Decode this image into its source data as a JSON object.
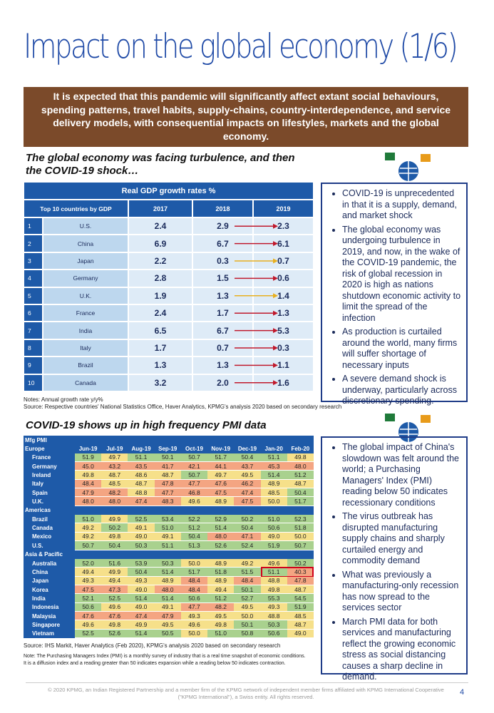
{
  "title": "Impact on the global economy (1/6)",
  "banner": "It is expected that this pandemic will significantly affect extant social behaviours, spending patterns, travel habits, supply-chains, country-interdependence, and service delivery models, with consequential impacts on lifestyles, markets and the global economy.",
  "gdp_section": {
    "heading": "The global economy was facing turbulence, and then the COVID-19 shock…",
    "table": {
      "title": "Real GDP growth rates %",
      "header": [
        "Top 10 countries  by GDP",
        "2017",
        "2018",
        "2019"
      ],
      "rows": [
        [
          "1",
          "U.S.",
          "2.4",
          "2.9",
          "2.3"
        ],
        [
          "2",
          "China",
          "6.9",
          "6.7",
          "6.1"
        ],
        [
          "3",
          "Japan",
          "2.2",
          "0.3",
          "0.7"
        ],
        [
          "4",
          "Germany",
          "2.8",
          "1.5",
          "0.6"
        ],
        [
          "5",
          "U.K.",
          "1.9",
          "1.3",
          "1.4"
        ],
        [
          "6",
          "France",
          "2.4",
          "1.7",
          "1.3"
        ],
        [
          "7",
          "India",
          "6.5",
          "6.7",
          "5.3"
        ],
        [
          "8",
          "Italy",
          "1.7",
          "0.7",
          "0.3"
        ],
        [
          "9",
          "Brazil",
          "1.3",
          "1.3",
          "1.1"
        ],
        [
          "10",
          "Canada",
          "3.2",
          "2.0",
          "1.6"
        ]
      ]
    },
    "notes": [
      "Notes: Annual growth rate y/y%",
      "Source: Respective countries' National Statistics Office, Haver Analytics, KPMG's analysis 2020 based on secondary research"
    ]
  },
  "bullets1": [
    "COVID-19 is unprecedented in that it is a supply, demand, and market shock",
    "The global economy was undergoing turbulence in 2019, and now, in the wake of the COVID-19 pandemic, the risk of global recession in 2020 is high as nations shutdown economic activity to limit the spread of the infection",
    "As production is curtailed around the world, many firms will suffer shortage of necessary inputs",
    "A severe demand shock is underway, particularly across discretionary spending."
  ],
  "pmi_section": {
    "heading": "COVID-19 shows up in high frequency PMI data",
    "table": {
      "label": "Mfg PMI",
      "months": [
        "Jun-19",
        "Jul-19",
        "Aug-19",
        "Sep-19",
        "Oct-19",
        "Nov-19",
        "Dec-19",
        "Jan-20",
        "Feb-20"
      ],
      "groups": [
        {
          "name": "Europe",
          "rows": [
            {
              "country": "France",
              "values": [
                "51.9",
                "49.7",
                "51.1",
                "50.1",
                "50.7",
                "51.7",
                "50.4",
                "51.1",
                "49.8"
              ]
            },
            {
              "country": "Germany",
              "values": [
                "45.0",
                "43.2",
                "43.5",
                "41.7",
                "42.1",
                "44.1",
                "43.7",
                "45.3",
                "48.0"
              ]
            },
            {
              "country": "Ireland",
              "values": [
                "49.8",
                "48.7",
                "48.6",
                "48.7",
                "50.7",
                "49.7",
                "49.5",
                "51.4",
                "51.2"
              ]
            },
            {
              "country": "Italy",
              "values": [
                "48.4",
                "48.5",
                "48.7",
                "47.8",
                "47.7",
                "47.6",
                "46.2",
                "48.9",
                "48.7"
              ]
            },
            {
              "country": "Spain",
              "values": [
                "47.9",
                "48.2",
                "48.8",
                "47.7",
                "46.8",
                "47.5",
                "47.4",
                "48.5",
                "50.4"
              ]
            },
            {
              "country": "U.K.",
              "values": [
                "48.0",
                "48.0",
                "47.4",
                "48.3",
                "49.6",
                "48.9",
                "47.5",
                "50.0",
                "51.7"
              ]
            }
          ]
        },
        {
          "name": "Americas",
          "rows": [
            {
              "country": "Brazil",
              "values": [
                "51.0",
                "49.9",
                "52.5",
                "53.4",
                "52.2",
                "52.9",
                "50.2",
                "51.0",
                "52.3"
              ]
            },
            {
              "country": "Canada",
              "values": [
                "49.2",
                "50.2",
                "49.1",
                "51.0",
                "51.2",
                "51.4",
                "50.4",
                "50.6",
                "51.8"
              ]
            },
            {
              "country": "Mexico",
              "values": [
                "49.2",
                "49.8",
                "49.0",
                "49.1",
                "50.4",
                "48.0",
                "47.1",
                "49.0",
                "50.0"
              ]
            },
            {
              "country": "U.S.",
              "values": [
                "50.7",
                "50.4",
                "50.3",
                "51.1",
                "51.3",
                "52.6",
                "52.4",
                "51.9",
                "50.7"
              ]
            }
          ]
        },
        {
          "name": "Asia & Pacific",
          "rows": [
            {
              "country": "Australia",
              "values": [
                "52.0",
                "51.6",
                "53.9",
                "50.3",
                "50.0",
                "48.9",
                "49.2",
                "49.6",
                "50.2"
              ]
            },
            {
              "country": "China",
              "values": [
                "49.4",
                "49.9",
                "50.4",
                "51.4",
                "51.7",
                "51.8",
                "51.5",
                "51.1",
                "40.3"
              ]
            },
            {
              "country": "Japan",
              "values": [
                "49.3",
                "49.4",
                "49.3",
                "48.9",
                "48.4",
                "48.9",
                "48.4",
                "48.8",
                "47.8"
              ]
            },
            {
              "country": "Korea",
              "values": [
                "47.5",
                "47.3",
                "49.0",
                "48.0",
                "48.4",
                "49.4",
                "50.1",
                "49.8",
                "48.7"
              ]
            },
            {
              "country": "India",
              "values": [
                "52.1",
                "52.5",
                "51.4",
                "51.4",
                "50.6",
                "51.2",
                "52.7",
                "55.3",
                "54.5"
              ]
            },
            {
              "country": "Indonesia",
              "values": [
                "50.6",
                "49.6",
                "49.0",
                "49.1",
                "47.7",
                "48.2",
                "49.5",
                "49.3",
                "51.9"
              ]
            },
            {
              "country": "Malaysia",
              "values": [
                "47.6",
                "47.6",
                "47.4",
                "47.9",
                "49.3",
                "49.5",
                "50.0",
                "48.8",
                "48.5"
              ]
            },
            {
              "country": "Singapore",
              "values": [
                "49.6",
                "49.8",
                "49.9",
                "49.5",
                "49.6",
                "49.8",
                "50.1",
                "50.3",
                "48.7"
              ]
            },
            {
              "country": "Vietnam",
              "values": [
                "52.5",
                "52.6",
                "51.4",
                "50.5",
                "50.0",
                "51.0",
                "50.8",
                "50.6",
                "49.0"
              ]
            }
          ]
        }
      ]
    },
    "notes": [
      "Source: IHS Markit, Haver Analytics (Feb 2020), KPMG's analysis 2020 based on secondary research",
      "Note: The Purchasing Managers Index (PMI) is a monthly survey of industry that is a real time snapshot of economic conditions.",
      "It is a diffusion index and a reading greater than 50 indicates expansion while a reading below 50 indicates contraction."
    ]
  },
  "bullets2": [
    "The global impact of China's slowdown was felt around the world; a Purchasing Managers' Index (PMI) reading below 50 indicates recessionary conditions",
    "The virus outbreak has disrupted manufacturing supply chains and sharply curtailed energy and commodity demand",
    "What was previously a manufacturing-only recession has now spread to the services sector",
    "March PMI data for both services and manufacturing reflect the growing economic stress as social distancing causes a sharp decline in demand."
  ],
  "footer": "© 2020 KPMG, an Indian Registered Partnership and a member firm of the KPMG network of independent member firms affiliated with KPMG International Cooperative (\"KPMG International\"), a Swiss entity. All rights reserved.",
  "page_number": "4"
}
